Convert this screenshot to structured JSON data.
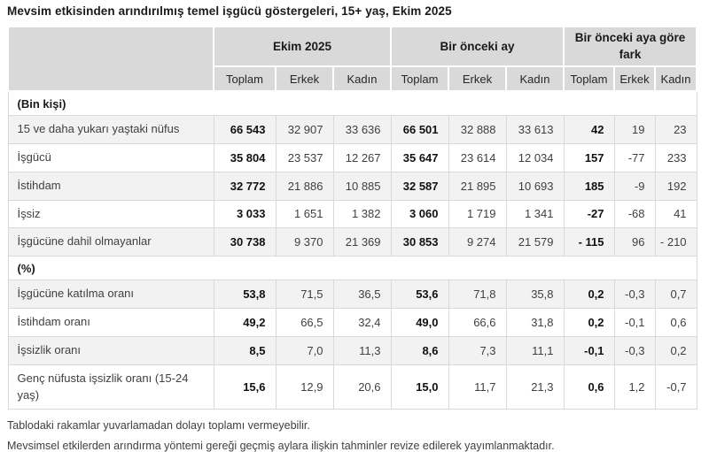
{
  "title": "Mevsim etkisinden arındırılmış temel işgücü göstergeleri, 15+ yaş, Ekim 2025",
  "table": {
    "col_groups": [
      "Ekim 2025",
      "Bir önceki ay",
      "Bir önceki aya göre fark"
    ],
    "sub_headers": [
      "Toplam",
      "Erkek",
      "Kadın"
    ],
    "sections": [
      {
        "header": "(Bin kişi)",
        "rows": [
          {
            "label": "15 ve daha yukarı yaştaki nüfus",
            "values": [
              "66 543",
              "32 907",
              "33 636",
              "66 501",
              "32 888",
              "33 613",
              "42",
              "19",
              "23"
            ]
          },
          {
            "label": "İşgücü",
            "values": [
              "35 804",
              "23 537",
              "12 267",
              "35 647",
              "23 614",
              "12 034",
              "157",
              "-77",
              "233"
            ]
          },
          {
            "label": "İstihdam",
            "values": [
              "32 772",
              "21 886",
              "10 885",
              "32 587",
              "21 895",
              "10 693",
              "185",
              "-9",
              "192"
            ]
          },
          {
            "label": "İşsiz",
            "values": [
              "3 033",
              "1 651",
              "1 382",
              "3 060",
              "1 719",
              "1 341",
              "-27",
              "-68",
              "41"
            ]
          },
          {
            "label": "İşgücüne dahil olmayanlar",
            "values": [
              "30 738",
              "9 370",
              "21 369",
              "30 853",
              "9 274",
              "21 579",
              "- 115",
              "96",
              "- 210"
            ]
          }
        ]
      },
      {
        "header": "(%)",
        "rows": [
          {
            "label": "İşgücüne katılma oranı",
            "values": [
              "53,8",
              "71,5",
              "36,5",
              "53,6",
              "71,8",
              "35,8",
              "0,2",
              "-0,3",
              "0,7"
            ]
          },
          {
            "label": "İstihdam oranı",
            "values": [
              "49,2",
              "66,5",
              "32,4",
              "49,0",
              "66,6",
              "31,8",
              "0,2",
              "-0,1",
              "0,6"
            ]
          },
          {
            "label": "İşsizlik oranı",
            "values": [
              "8,5",
              "7,0",
              "11,3",
              "8,6",
              "7,3",
              "11,1",
              "-0,1",
              "-0,3",
              "0,2"
            ]
          },
          {
            "label": "Genç nüfusta işsizlik oranı (15-24 yaş)",
            "values": [
              "15,6",
              "12,9",
              "20,6",
              "15,0",
              "11,7",
              "21,3",
              "0,6",
              "1,2",
              "-0,7"
            ]
          }
        ]
      }
    ]
  },
  "footnotes": [
    "Tablodaki rakamlar yuvarlamadan dolayı toplamı vermeyebilir.",
    "Mevsimsel etkilerden arındırma yöntemi gereği geçmiş aylara ilişkin tahminler revize edilerek yayımlanmaktadır."
  ],
  "colors": {
    "header_bg": "#d9d9d9",
    "stripe_bg": "#f2f2f2",
    "border": "#d9d9d9",
    "text": "#404040",
    "strong_text": "#111111"
  }
}
